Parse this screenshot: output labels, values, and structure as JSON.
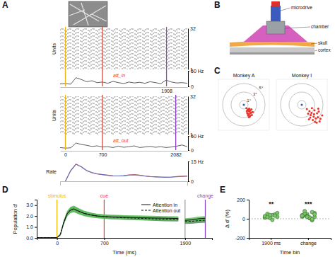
{
  "chart_data": [
    {
      "type": "raster",
      "title": "A",
      "y_label": "Units",
      "annotation": "att_in",
      "xlim": [
        -100,
        2300
      ],
      "xticks": [
        1908
      ],
      "ylim": [
        1,
        32
      ],
      "yticks": [
        32,
        1
      ],
      "events": [
        {
          "x": 0,
          "color": "#f2b20c"
        },
        {
          "x": 700,
          "color": "#e8442e"
        },
        {
          "x": 1908,
          "color": "#8e44c9"
        }
      ],
      "trace": {
        "x": [
          -100,
          0,
          100,
          200,
          300,
          400,
          500,
          600,
          700,
          800,
          900,
          1000,
          1100,
          1200,
          1300,
          1400,
          1500,
          1600,
          1700,
          1800,
          1900,
          2000,
          2100,
          2200,
          2300
        ],
        "values": [
          8,
          9,
          7,
          28,
          22,
          15,
          18,
          12,
          14,
          10,
          16,
          12,
          9,
          14,
          11,
          13,
          10,
          15,
          12,
          9,
          20,
          14,
          11,
          12,
          10
        ],
        "ylim": [
          0,
          50
        ],
        "yticks": [
          {
            "value": 50,
            "label": "50 Hz"
          },
          0
        ],
        "color": "#333333"
      }
    },
    {
      "type": "raster",
      "y_label": "Units",
      "annotation": "att_out",
      "xlim": [
        -100,
        2300
      ],
      "xticks": [
        0,
        700,
        2082
      ],
      "ylim": [
        1,
        32
      ],
      "yticks": [
        32,
        1
      ],
      "events": [
        {
          "x": 0,
          "color": "#f2b20c"
        },
        {
          "x": 700,
          "color": "#e8442e"
        },
        {
          "x": 2082,
          "color": "#8e44c9"
        }
      ],
      "trace": {
        "x": [
          -100,
          0,
          100,
          200,
          300,
          400,
          500,
          600,
          700,
          800,
          900,
          1000,
          1100,
          1200,
          1300,
          1400,
          1500,
          1600,
          1700,
          1800,
          1900,
          2000,
          2100,
          2200,
          2300
        ],
        "values": [
          9,
          7,
          8,
          25,
          20,
          17,
          13,
          15,
          11,
          12,
          9,
          14,
          10,
          12,
          15,
          9,
          11,
          13,
          10,
          12,
          9,
          11,
          14,
          18,
          12
        ],
        "ylim": [
          0,
          50
        ],
        "yticks": [
          {
            "value": 50,
            "label": "50 Hz"
          },
          0
        ],
        "color": "#333333"
      }
    },
    {
      "type": "line",
      "y_label": "Rate",
      "xlim": [
        -100,
        2300
      ],
      "ylim": [
        0,
        15
      ],
      "yticks": [
        {
          "value": 15,
          "label": "15 Hz"
        },
        0
      ],
      "tick_labels": "y",
      "x": [
        0,
        100,
        200,
        300,
        400,
        500,
        600,
        700,
        800,
        900,
        1000,
        1100,
        1200,
        1300,
        1400,
        1500,
        1600,
        1700,
        1800,
        1900,
        2000,
        2100,
        2200,
        2300
      ],
      "series": [
        {
          "color": "#e0403a",
          "values": [
            0,
            8,
            13,
            11,
            8,
            6.5,
            5.5,
            5,
            4.5,
            4,
            4,
            4.2,
            4.8,
            5,
            4.6,
            4,
            3.6,
            3.4,
            3.2,
            3,
            3.2,
            3.6,
            3.8,
            4
          ]
        },
        {
          "color": "#4a6fd0",
          "values": [
            0,
            8,
            12.8,
            11,
            8.2,
            6.6,
            5.6,
            5,
            4.6,
            4.1,
            4,
            4.1,
            4.6,
            4.8,
            4.5,
            3.9,
            3.5,
            3.3,
            3.1,
            3,
            3.1,
            3.4,
            3.6,
            3.8
          ]
        }
      ]
    },
    {
      "type": "scatter",
      "title": "C",
      "subtitle": "Monkey A",
      "xlim": [
        -6,
        6
      ],
      "ylim": [
        -6,
        6
      ],
      "tick_labels": false,
      "rings": [
        {
          "value": 1,
          "label": "1°"
        },
        {
          "value": 3,
          "label": "3°"
        },
        {
          "value": 5,
          "label": "5°"
        }
      ],
      "color": "#e8312a",
      "x": [
        0.6,
        0.9,
        1.1,
        1.3,
        0.8,
        1.5,
        1.2,
        1.7,
        1.0,
        1.4,
        0.7,
        1.9,
        1.3,
        1.6,
        1.1,
        0.9,
        1.8,
        1.2,
        1.5,
        2.1
      ],
      "values": [
        -0.8,
        -1.2,
        -1.0,
        -1.6,
        -1.9,
        -1.3,
        -2.2,
        -1.8,
        -2.5,
        -2.8,
        -1.5,
        -2.4,
        -0.9,
        -2.0,
        -1.4,
        -2.1,
        -1.1,
        -2.9,
        -2.6,
        -1.7
      ]
    },
    {
      "type": "scatter",
      "subtitle": "Monkey I",
      "xlim": [
        -6,
        6
      ],
      "ylim": [
        -6,
        6
      ],
      "tick_labels": false,
      "rings": [
        1,
        3,
        5
      ],
      "color": "#e8312a",
      "x": [
        1.2,
        1.8,
        2.4,
        3.0,
        3.6,
        2.1,
        2.8,
        3.3,
        4.0,
        1.5,
        2.6,
        3.8,
        4.4,
        2.0,
        3.1,
        4.8,
        2.3,
        3.5,
        1.7,
        4.2,
        2.9,
        3.9
      ],
      "values": [
        -1.0,
        -1.5,
        -0.8,
        -1.3,
        -2.0,
        -2.4,
        -2.8,
        -3.2,
        -1.6,
        -2.1,
        -3.6,
        -2.9,
        -3.3,
        -3.0,
        -4.0,
        -2.5,
        -1.9,
        -4.2,
        -3.4,
        -3.9,
        -2.2,
        -0.9
      ]
    },
    {
      "type": "line",
      "title": "D",
      "x_label": "Time (ms)",
      "y_label": "Population d'",
      "xlim": [
        -300,
        2300
      ],
      "xticks": [
        0,
        700,
        1900
      ],
      "ylim": [
        0,
        3.5
      ],
      "yticks": [
        {
          "value": 0,
          "label": "0.0"
        },
        {
          "value": 1,
          "label": "1.0"
        },
        {
          "value": 2,
          "label": "2.0"
        },
        {
          "value": 3,
          "label": "3.0"
        }
      ],
      "legend": "top-right",
      "annotations": [
        {
          "text": "stimulus",
          "x": 0,
          "color": "#f2b20c"
        },
        {
          "text": "cue",
          "x": 700,
          "color": "#e8442e"
        },
        {
          "x": 1900,
          "color": "#9a9a9a"
        },
        {
          "text": "change",
          "x": 2200,
          "color": "#8e44c9"
        }
      ],
      "x": [
        -300,
        -200,
        -100,
        0,
        50,
        100,
        150,
        200,
        250,
        300,
        400,
        500,
        600,
        700,
        800,
        900,
        1000,
        1200,
        1400,
        1600,
        1800,
        1850,
        1900,
        2000,
        2100,
        2200
      ],
      "series": [
        {
          "name": "Attention in",
          "line_style": "solid",
          "color": "#5cc05a",
          "values": [
            0.02,
            0.02,
            0.02,
            0.03,
            0.3,
            1.4,
            2.2,
            2.55,
            2.65,
            2.5,
            2.25,
            2.1,
            2.0,
            1.95,
            1.92,
            1.9,
            1.88,
            1.85,
            1.82,
            1.8,
            1.78,
            null,
            1.6,
            1.65,
            1.75,
            1.8
          ],
          "error": [
            0.04,
            0.04,
            0.04,
            0.04,
            0.1,
            0.2,
            0.25,
            0.28,
            0.3,
            0.28,
            0.25,
            0.22,
            0.2,
            0.2,
            0.2,
            0.2,
            0.2,
            0.2,
            0.2,
            0.2,
            0.2,
            null,
            0.2,
            0.2,
            0.2,
            0.2
          ]
        },
        {
          "name": "Attention out",
          "line_style": "dashed",
          "color": "#2f6e3a",
          "values": [
            0.02,
            0.02,
            0.02,
            0.03,
            0.3,
            1.4,
            2.2,
            2.55,
            2.65,
            2.5,
            2.25,
            2.1,
            2.0,
            1.95,
            1.9,
            1.87,
            1.84,
            1.8,
            1.75,
            1.7,
            1.68,
            null,
            1.5,
            1.52,
            1.58,
            1.62
          ],
          "error": [
            0.04,
            0.04,
            0.04,
            0.04,
            0.1,
            0.18,
            0.22,
            0.25,
            0.26,
            0.25,
            0.22,
            0.2,
            0.18,
            0.18,
            0.18,
            0.18,
            0.18,
            0.18,
            0.18,
            0.18,
            0.18,
            null,
            0.22,
            0.22,
            0.22,
            0.22
          ]
        }
      ]
    },
    {
      "type": "scatter",
      "title": "E",
      "x_label": "Time bin",
      "y_label": "Δ d' (%)",
      "categories": [
        "1900 ms",
        "change"
      ],
      "ylim": [
        -200,
        200
      ],
      "yticks": [
        -200,
        0,
        200
      ],
      "color": "#7cc66a",
      "values": [
        [
          12,
          25,
          30,
          38,
          45,
          20,
          15,
          52,
          8,
          -12,
          33,
          60,
          28,
          18,
          40
        ],
        [
          22,
          35,
          48,
          10,
          -15,
          60,
          30,
          42,
          28,
          5,
          70,
          18,
          38,
          55,
          25,
          14,
          -5,
          46,
          32,
          80,
          20
        ]
      ],
      "significance": [
        "**",
        "***"
      ]
    }
  ],
  "diagram": {
    "title": "B",
    "labels": [
      "microdrive",
      "chamber",
      "skull",
      "cortex"
    ]
  }
}
